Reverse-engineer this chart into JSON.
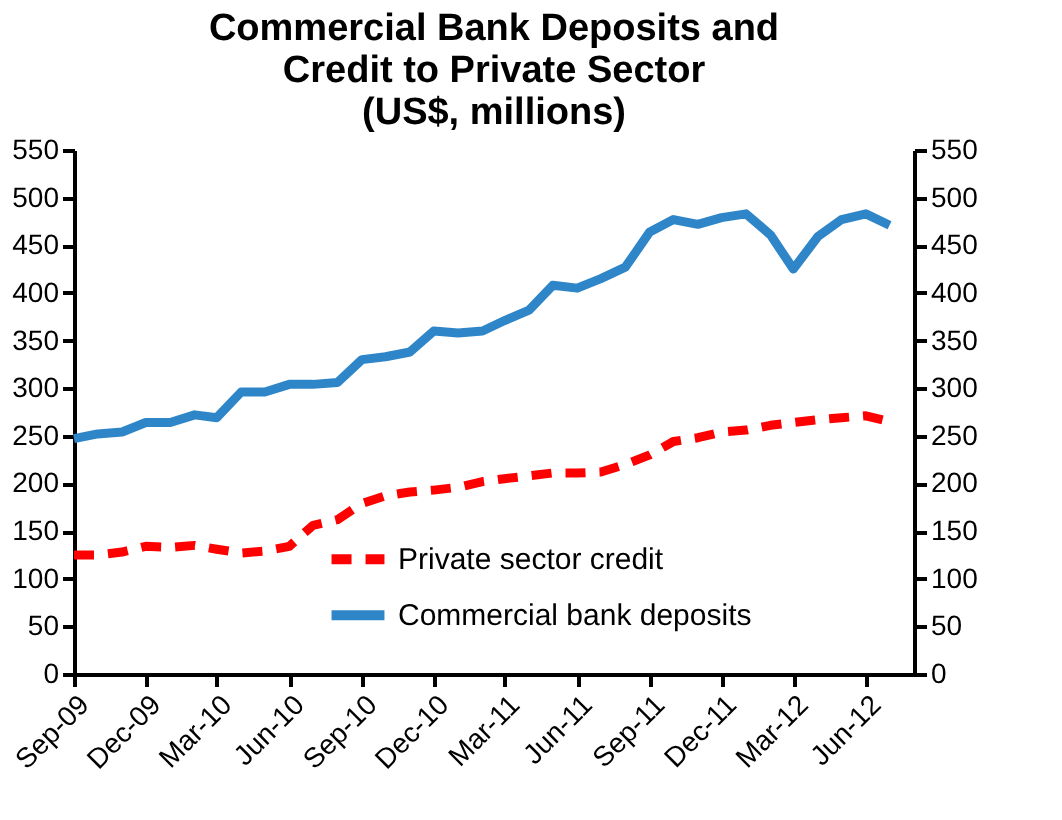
{
  "chart_data": {
    "type": "line",
    "title": "Commercial Bank Deposits and\nCredit to Private Sector\n(US$, millions)",
    "x": [
      "2009-09",
      "2009-10",
      "2009-11",
      "2009-12",
      "2010-01",
      "2010-02",
      "2010-03",
      "2010-04",
      "2010-05",
      "2010-06",
      "2010-07",
      "2010-08",
      "2010-09",
      "2010-10",
      "2010-11",
      "2010-12",
      "2011-01",
      "2011-02",
      "2011-03",
      "2011-04",
      "2011-05",
      "2011-06",
      "2011-07",
      "2011-08",
      "2011-09",
      "2011-10",
      "2011-11",
      "2011-12",
      "2012-01",
      "2012-02",
      "2012-03",
      "2012-04",
      "2012-05",
      "2012-06",
      "2012-07"
    ],
    "series": [
      {
        "name": "Private sector credit",
        "color": "#ff0000",
        "line_style": "dashed",
        "values": [
          125,
          125,
          128,
          134,
          133,
          135,
          131,
          127,
          129,
          134,
          156,
          162,
          179,
          187,
          191,
          193,
          196,
          202,
          205,
          208,
          211,
          211,
          212,
          220,
          230,
          244,
          248,
          254,
          256,
          261,
          264,
          267,
          269,
          271,
          265
        ]
      },
      {
        "name": "Commercial bank deposits",
        "color": "#2e86c8",
        "line_style": "solid",
        "values": [
          247,
          252,
          254,
          264,
          264,
          272,
          269,
          296,
          296,
          304,
          304,
          306,
          330,
          333,
          338,
          360,
          358,
          360,
          371,
          382,
          408,
          405,
          415,
          427,
          464,
          477,
          472,
          479,
          483,
          461,
          425,
          459,
          477,
          483,
          471
        ]
      }
    ],
    "xlim": [
      "2009-09",
      "2012-08"
    ],
    "xticks": [
      {
        "value": "2009-09",
        "label": "Sep-09"
      },
      {
        "value": "2009-12",
        "label": "Dec-09"
      },
      {
        "value": "2010-03",
        "label": "Mar-10"
      },
      {
        "value": "2010-06",
        "label": "Jun-10"
      },
      {
        "value": "2010-09",
        "label": "Sep-10"
      },
      {
        "value": "2010-12",
        "label": "Dec-10"
      },
      {
        "value": "2011-03",
        "label": "Mar-11"
      },
      {
        "value": "2011-06",
        "label": "Jun-11"
      },
      {
        "value": "2011-09",
        "label": "Sep-11"
      },
      {
        "value": "2011-12",
        "label": "Dec-11"
      },
      {
        "value": "2012-03",
        "label": "Mar-12"
      },
      {
        "value": "2012-06",
        "label": "Jun-12"
      }
    ],
    "ylim": [
      0,
      550
    ],
    "yticks": [
      0,
      50,
      100,
      150,
      200,
      250,
      300,
      350,
      400,
      450,
      500,
      550
    ],
    "y2lim": [
      0,
      550
    ],
    "y2ticks": [
      0,
      50,
      100,
      150,
      200,
      250,
      300,
      350,
      400,
      450,
      500,
      550
    ],
    "grid": false,
    "legend": "bottom",
    "marker": "none"
  }
}
